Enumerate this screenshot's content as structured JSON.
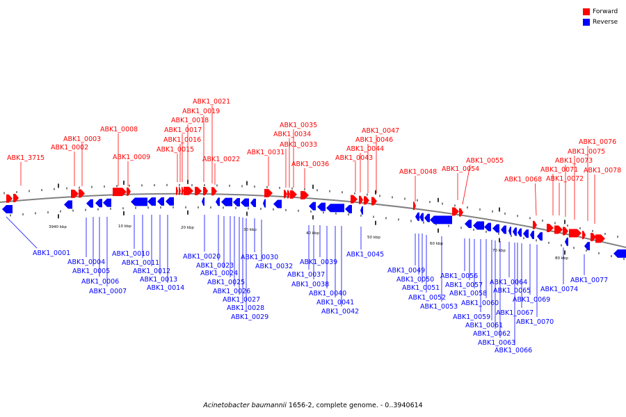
{
  "legend": [
    {
      "label": "Forward",
      "color": "#ff0000"
    },
    {
      "label": "Reverse",
      "color": "#0000ff"
    }
  ],
  "caption": {
    "species": "Acinetobacter baumannii",
    "rest": " 1656-2, complete genome. - 0..3940614"
  },
  "colors": {
    "forward": "#ff0000",
    "reverse": "#0000ff",
    "backbone": "#808080"
  },
  "kbp_marks": [
    "3940 kbp",
    "10 kbp",
    "20 kbp",
    "30 kbp",
    "40 kbp",
    "50 kbp",
    "60 kbp",
    "70 kbp",
    "80 kbp"
  ],
  "forward_genes": [
    "ABK1_3715",
    "ABK1_0002",
    "ABK1_0003",
    "ABK1_0008",
    "ABK1_0009",
    "ABK1_0015",
    "ABK1_0016",
    "ABK1_0017",
    "ABK1_0018",
    "ABK1_0019",
    "ABK1_0021",
    "ABK1_0022",
    "ABK1_0031",
    "ABK1_0033",
    "ABK1_0034",
    "ABK1_0035",
    "ABK1_0036",
    "ABK1_0043",
    "ABK1_0044",
    "ABK1_0046",
    "ABK1_0047",
    "ABK1_0048",
    "ABK1_0054",
    "ABK1_0055",
    "ABK1_0068",
    "ABK1_0071",
    "ABK1_0072",
    "ABK1_0073",
    "ABK1_0075",
    "ABK1_0076",
    "ABK1_0078"
  ],
  "reverse_genes": [
    "ABK1_0001",
    "ABK1_0004",
    "ABK1_0005",
    "ABK1_0006",
    "ABK1_0007",
    "ABK1_0010",
    "ABK1_0011",
    "ABK1_0012",
    "ABK1_0013",
    "ABK1_0014",
    "ABK1_0020",
    "ABK1_0023",
    "ABK1_0024",
    "ABK1_0025",
    "ABK1_0026",
    "ABK1_0027",
    "ABK1_0028",
    "ABK1_0029",
    "ABK1_0030",
    "ABK1_0032",
    "ABK1_0037",
    "ABK1_0038",
    "ABK1_0039",
    "ABK1_0040",
    "ABK1_0041",
    "ABK1_0042",
    "ABK1_0045",
    "ABK1_0049",
    "ABK1_0050",
    "ABK1_0051",
    "ABK1_0052",
    "ABK1_0053",
    "ABK1_0056",
    "ABK1_0057",
    "ABK1_0058",
    "ABK1_0059",
    "ABK1_0060",
    "ABK1_0061",
    "ABK1_0062",
    "ABK1_0063",
    "ABK1_0064",
    "ABK1_0065",
    "ABK1_0066",
    "ABK1_0067",
    "ABK1_0069",
    "ABK1_0070",
    "ABK1_0074",
    "ABK1_0077"
  ]
}
